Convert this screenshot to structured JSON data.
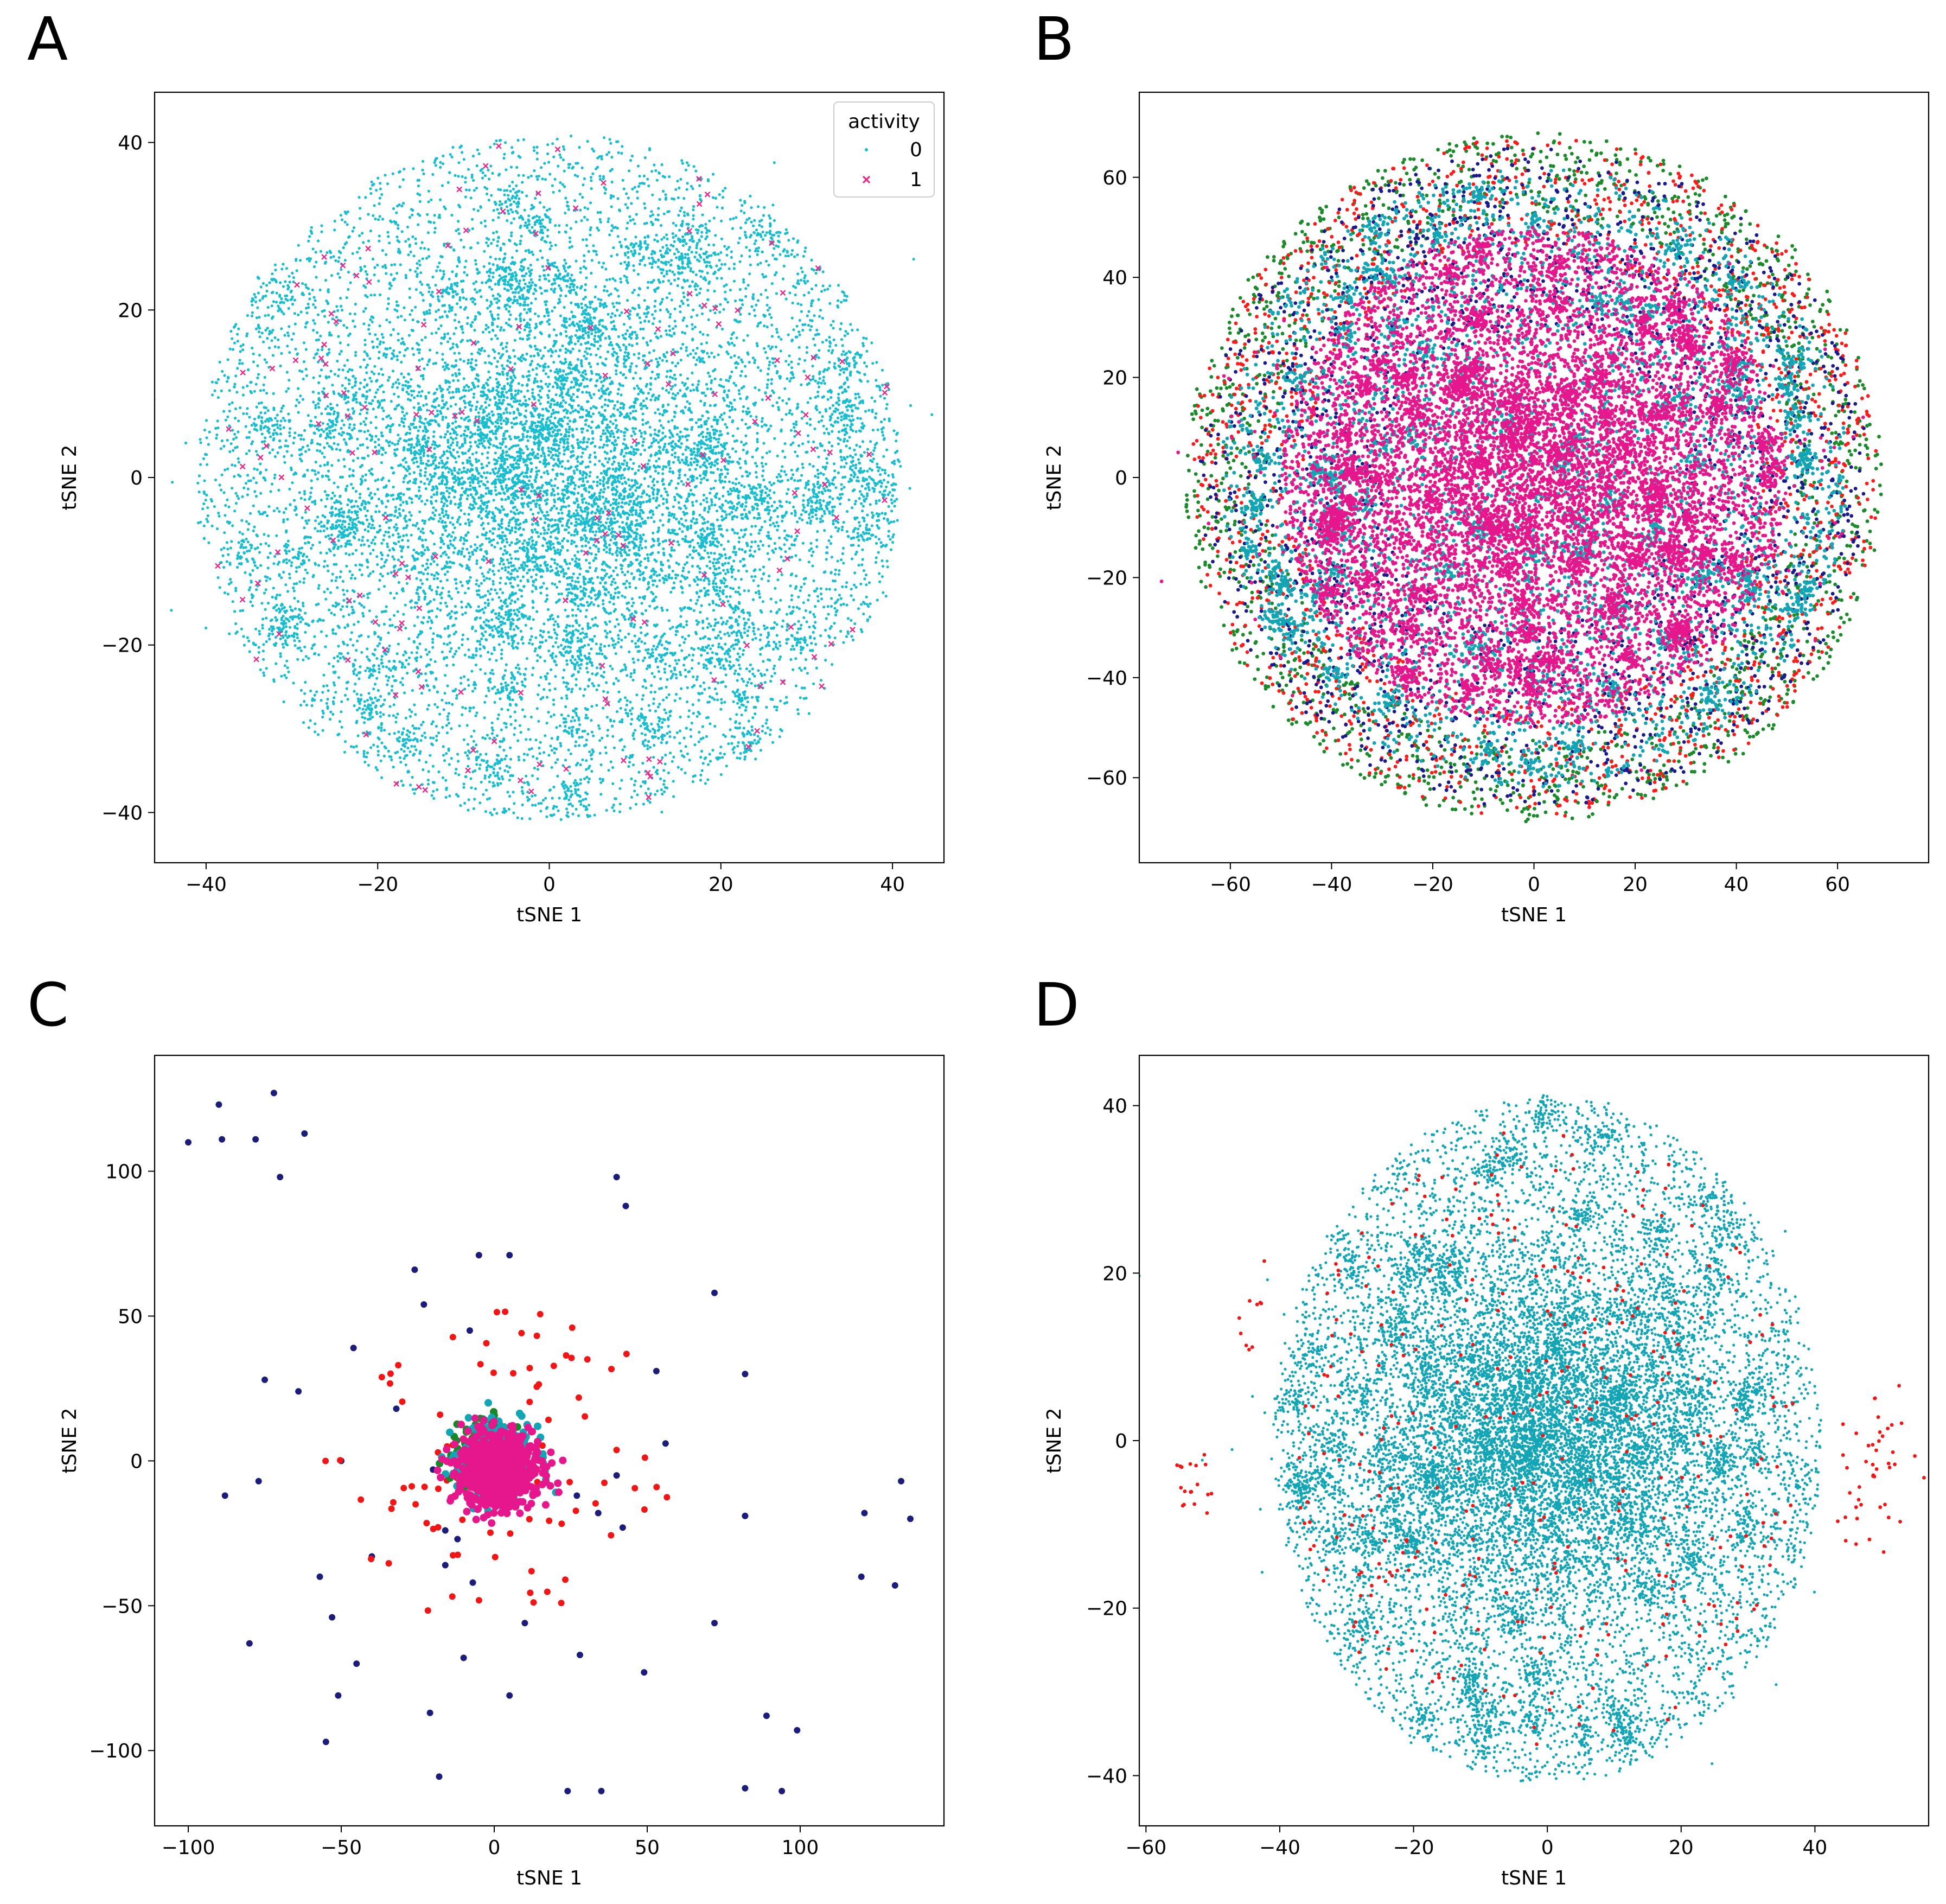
{
  "chart_data": [
    {
      "panel": "A",
      "type": "scatter",
      "title": "",
      "xlabel": "tSNE 1",
      "ylabel": "tSNE 2",
      "xlim": [
        -46,
        46
      ],
      "ylim": [
        -46,
        46
      ],
      "xticks": [
        -40,
        -20,
        0,
        20,
        40
      ],
      "yticks": [
        -40,
        -20,
        0,
        20,
        40
      ],
      "legend": {
        "title": "activity",
        "placement": "top-right",
        "entries": [
          {
            "label": "0",
            "color": "#17becf"
          },
          {
            "label": "1",
            "color": "#e7298a"
          }
        ]
      },
      "series": [
        {
          "name": "0",
          "color": "#17becf",
          "marker": "dot",
          "shape": "disk",
          "radius": 41,
          "count": 9000,
          "cores": 4000,
          "core_spread": 14
        },
        {
          "name": "1",
          "color": "#e7298a",
          "marker": "x",
          "shape": "disk",
          "radius": 41,
          "count": 170
        }
      ]
    },
    {
      "panel": "B",
      "type": "scatter",
      "title": "",
      "xlabel": "tSNE 1",
      "ylabel": "tSNE 2",
      "xlim": [
        -78,
        78
      ],
      "ylim": [
        -77,
        77
      ],
      "xticks": [
        -60,
        -40,
        -20,
        0,
        20,
        40,
        60
      ],
      "yticks": [
        -60,
        -40,
        -20,
        0,
        20,
        40,
        60
      ],
      "series": [
        {
          "name": "green",
          "color": "#1a8a2a",
          "shape": "ring",
          "r_min": 52,
          "radius": 69,
          "count": 1600
        },
        {
          "name": "red",
          "color": "#ff1a1a",
          "shape": "ring",
          "r_min": 45,
          "radius": 68,
          "count": 1600
        },
        {
          "name": "navy",
          "color": "#1a1a8c",
          "shape": "ring",
          "r_min": 30,
          "radius": 66,
          "count": 1800
        },
        {
          "name": "cyan",
          "color": "#12a5b5",
          "shape": "disk",
          "radius": 62,
          "count": 5000
        },
        {
          "name": "magenta",
          "color": "#e6178c",
          "shape": "disk",
          "radius": 50,
          "count": 8000,
          "cores": 3000,
          "core_spread": 20
        }
      ]
    },
    {
      "panel": "C",
      "type": "scatter",
      "title": "",
      "xlabel": "tSNE 1",
      "ylabel": "tSNE 2",
      "xlim": [
        -111,
        147
      ],
      "ylim": [
        -126,
        140
      ],
      "xticks": [
        -100,
        -50,
        0,
        50,
        100
      ],
      "yticks": [
        -100,
        -50,
        0,
        50,
        100
      ],
      "series": [
        {
          "name": "navy",
          "color": "#1c1c7a",
          "shape": "points",
          "x": [
            -100,
            -90,
            -72,
            -89,
            -78,
            -70,
            -62,
            -5,
            5,
            -26,
            -23,
            40,
            43,
            72,
            -46,
            -40,
            -77,
            -64,
            -32,
            -50,
            -88,
            -75,
            -57,
            -53,
            -45,
            -51,
            -55,
            -21,
            -10,
            -18,
            5,
            10,
            -16,
            -80,
            24,
            35,
            28,
            49,
            53,
            56,
            82,
            82,
            82,
            89,
            94,
            99,
            120,
            121,
            131,
            133,
            136,
            72,
            -12,
            -20,
            -7,
            -16,
            40,
            42,
            27,
            34,
            -8
          ],
          "y": [
            110,
            123,
            127,
            111,
            111,
            98,
            113,
            71,
            71,
            66,
            54,
            98,
            88,
            58,
            39,
            -33,
            -7,
            24,
            18,
            0,
            -12,
            28,
            -40,
            -54,
            -70,
            -81,
            -97,
            -87,
            -68,
            -109,
            -81,
            -56,
            -24,
            -63,
            -114,
            -114,
            -67,
            -73,
            31,
            6,
            30,
            -19,
            -113,
            -88,
            -114,
            -93,
            -40,
            -18,
            -43,
            -7,
            -20,
            -56,
            -27,
            -3,
            -42,
            -36,
            -5,
            -23,
            -12,
            -18,
            45
          ],
          "radius_px": 6
        },
        {
          "name": "red",
          "color": "#f21515",
          "shape": "scatter",
          "radius": 58,
          "r_min": 7,
          "count": 110
        },
        {
          "name": "green",
          "color": "#18862a",
          "shape": "gauss",
          "sx": 5,
          "sy": 5,
          "cx": -3,
          "cy": 3,
          "count": 120
        },
        {
          "name": "cyan",
          "color": "#12a5b5",
          "shape": "gauss",
          "sx": 6,
          "sy": 6,
          "cx": 1,
          "cy": 1,
          "count": 380
        },
        {
          "name": "magenta",
          "color": "#e6178c",
          "shape": "gauss",
          "sx": 6,
          "sy": 6,
          "cx": 1,
          "cy": -3,
          "count": 900
        }
      ]
    },
    {
      "panel": "D",
      "type": "scatter",
      "title": "",
      "xlabel": "tSNE 1",
      "ylabel": "tSNE 2",
      "xlim": [
        -61,
        57
      ],
      "ylim": [
        -46,
        46
      ],
      "xticks": [
        -60,
        -40,
        -20,
        0,
        20,
        40
      ],
      "yticks": [
        -40,
        -20,
        0,
        20,
        40
      ],
      "series": [
        {
          "name": "cyan",
          "color": "#12a5b5",
          "shape": "disk",
          "radius": 41,
          "count": 9500,
          "cores": 6000,
          "core_spread": 13
        },
        {
          "name": "red",
          "color": "#f21515",
          "shape": "disk",
          "radius": 38,
          "count": 330,
          "clusters": [
            {
              "cx": -53,
              "cy": -6,
              "n": 18,
              "s": 1.5
            },
            {
              "cx": 49,
              "cy": -4,
              "n": 45,
              "s": 3
            },
            {
              "cx": -44,
              "cy": 15,
              "n": 10,
              "s": 2
            }
          ]
        }
      ]
    }
  ]
}
